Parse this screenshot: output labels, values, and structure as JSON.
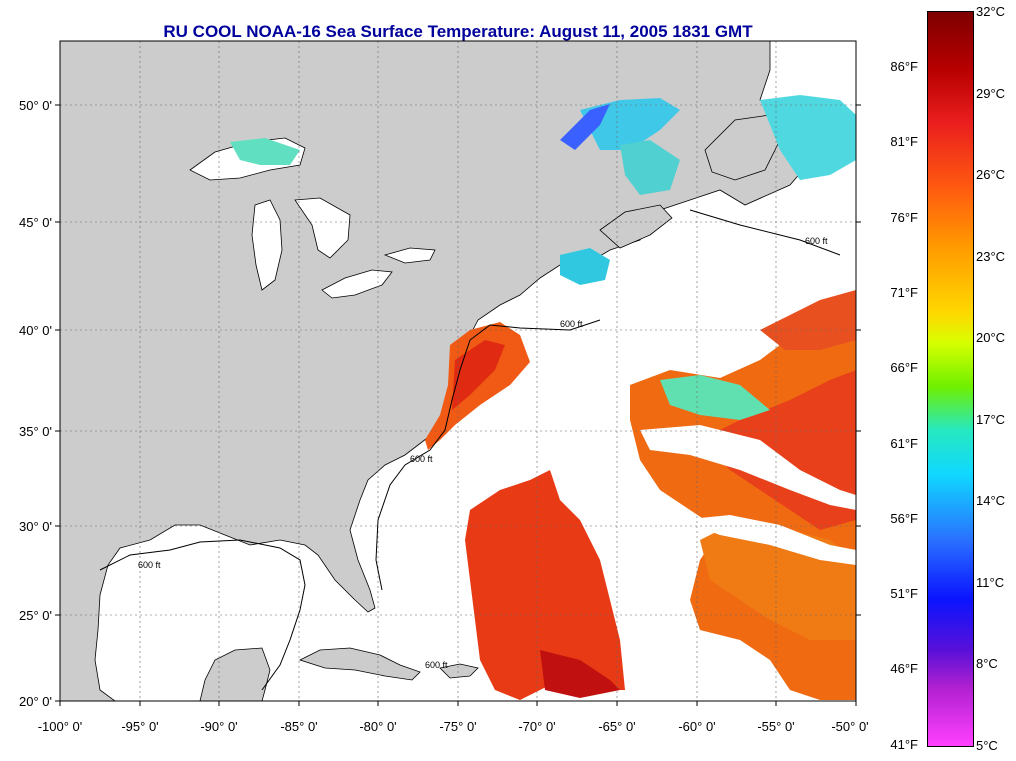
{
  "map": {
    "title": "RU COOL  NOAA-16  Sea Surface Temperature:  August 11, 2005 1831 GMT",
    "latitude_labels": [
      "50° 0'",
      "45° 0'",
      "40° 0'",
      "35° 0'",
      "30° 0'",
      "25° 0'",
      "20° 0'"
    ],
    "longitude_labels": [
      "-100° 0'",
      "-95° 0'",
      "-90° 0'",
      "-85° 0'",
      "-80° 0'",
      "-75° 0'",
      "-70° 0'",
      "-65° 0'",
      "-60° 0'",
      "-55° 0'",
      "-50° 0'"
    ],
    "contour_label": "600 ft",
    "colors": {
      "land": "#cccccc",
      "water": "#ffffff",
      "title": "#00009c"
    }
  },
  "colorbar": {
    "celsius_labels": [
      "32°C",
      "29°C",
      "26°C",
      "23°C",
      "20°C",
      "17°C",
      "14°C",
      "11°C",
      "8°C",
      "5°C"
    ],
    "fahrenheit_labels": [
      "86°F",
      "81°F",
      "76°F",
      "71°F",
      "66°F",
      "61°F",
      "56°F",
      "51°F",
      "46°F",
      "41°F"
    ]
  }
}
